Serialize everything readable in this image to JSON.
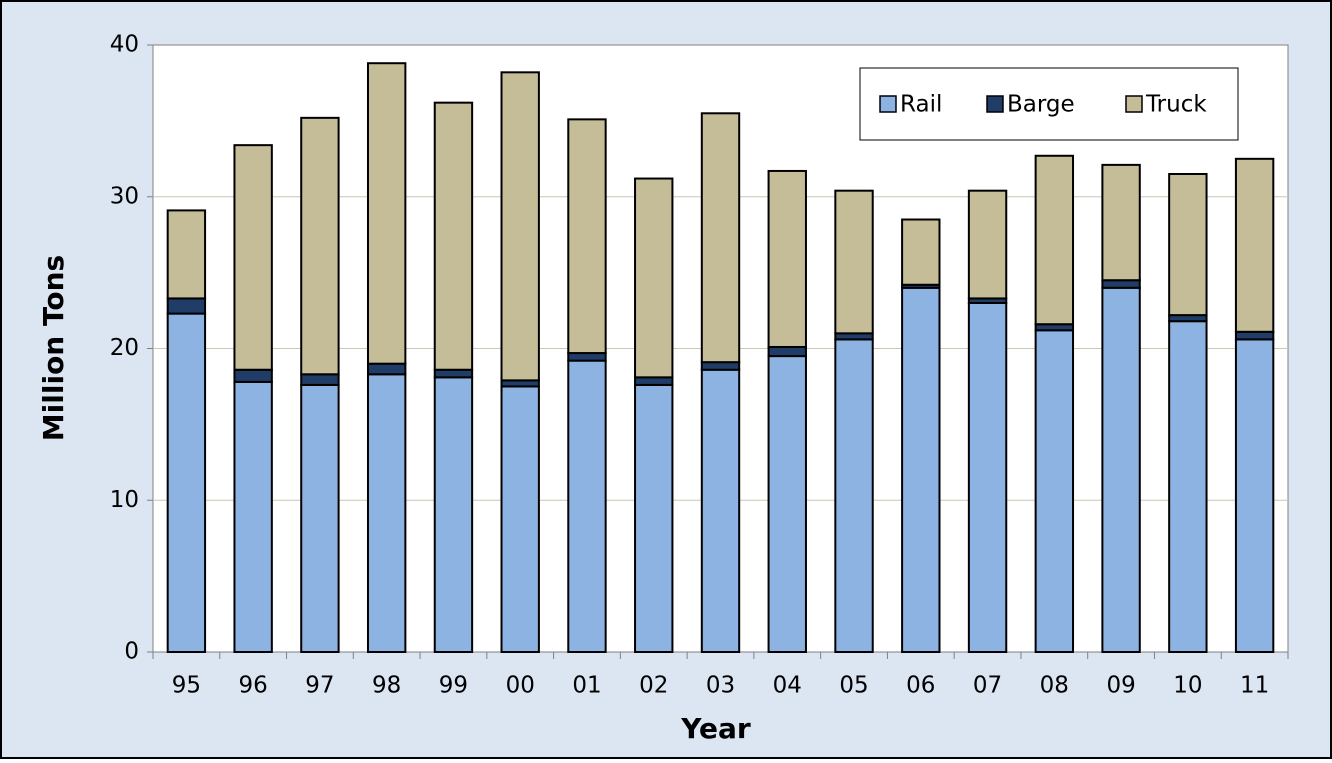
{
  "chart_data": {
    "type": "stacked_bar",
    "x_label": "Year",
    "y_label": "Million Tons",
    "categories": [
      "95",
      "96",
      "97",
      "98",
      "99",
      "00",
      "01",
      "02",
      "03",
      "04",
      "05",
      "06",
      "07",
      "08",
      "09",
      "10",
      "11"
    ],
    "series": [
      {
        "name": "Rail",
        "color": "#8db3e2",
        "values": [
          22.3,
          17.8,
          17.6,
          18.3,
          18.1,
          17.5,
          19.2,
          17.6,
          18.6,
          19.5,
          20.6,
          24.0,
          23.0,
          21.2,
          24.0,
          21.8,
          20.6
        ]
      },
      {
        "name": "Barge",
        "color": "#1f3d66",
        "values": [
          1.0,
          0.8,
          0.7,
          0.7,
          0.5,
          0.4,
          0.5,
          0.5,
          0.5,
          0.6,
          0.4,
          0.2,
          0.3,
          0.4,
          0.5,
          0.4,
          0.5
        ]
      },
      {
        "name": "Truck",
        "color": "#c4bd97",
        "values": [
          5.8,
          14.8,
          16.9,
          19.8,
          17.6,
          20.3,
          15.4,
          13.1,
          16.4,
          11.6,
          9.4,
          4.3,
          7.1,
          11.1,
          7.6,
          9.3,
          11.4
        ]
      }
    ],
    "ylim": [
      0,
      40
    ],
    "yticks": [
      0,
      10,
      20,
      30,
      40
    ],
    "grid": true,
    "legend": "top-right"
  }
}
